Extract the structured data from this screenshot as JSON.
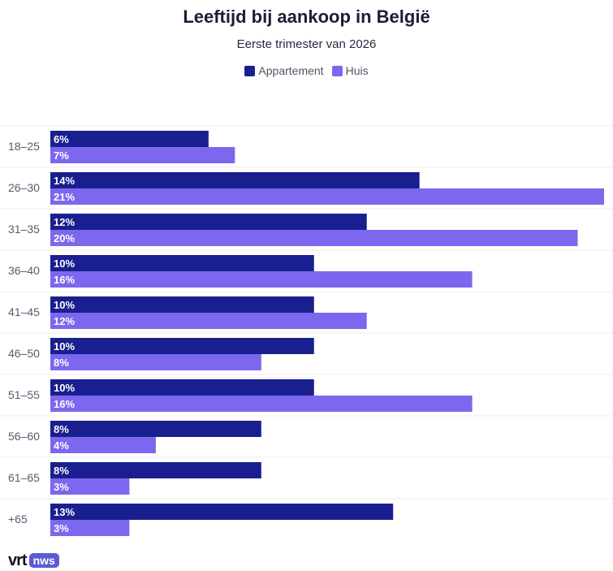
{
  "chart_data": {
    "type": "bar",
    "orientation": "horizontal",
    "title": "Leeftijd bij aankoop in België",
    "subtitle": "Eerste trimester van 2026",
    "categories": [
      "18–25",
      "26–30",
      "31–35",
      "36–40",
      "41–45",
      "46–50",
      "51–55",
      "56–60",
      "61–65",
      "+65"
    ],
    "series": [
      {
        "name": "Appartement",
        "color": "#1a1f8f",
        "values": [
          6,
          14,
          12,
          10,
          10,
          10,
          10,
          8,
          8,
          13
        ]
      },
      {
        "name": "Huis",
        "color": "#7b68ee",
        "values": [
          7,
          21,
          20,
          16,
          12,
          8,
          16,
          4,
          3,
          3
        ]
      }
    ],
    "value_suffix": "%",
    "xlim": [
      0,
      21
    ],
    "legend_position": "top-center",
    "grid": true
  },
  "branding": {
    "logo_vrt": "vrt",
    "logo_nws": "nws"
  }
}
